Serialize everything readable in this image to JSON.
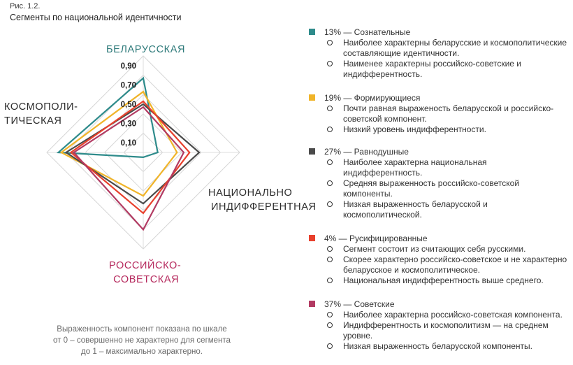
{
  "figure": {
    "label": "Рис. 1.2.",
    "title": "Сегменты по национальной идентичности"
  },
  "axes": {
    "belarusian": "БЕЛАРУССКАЯ",
    "cosmopolitan_line1": "КОСМОПОЛИ-",
    "cosmopolitan_line2": "ТИЧЕСКАЯ",
    "national_indiff_line1": "НАЦИОНАЛЬНО",
    "national_indiff_line2": "ИНДИФФЕРЕНТНАЯ",
    "russian_soviet_line1": "РОССИЙСКО-",
    "russian_soviet_line2": "СОВЕТСКАЯ"
  },
  "note": {
    "line1": "Выраженность компонент показана по шкале",
    "line2": "от 0 – совершенно не характерно для сегмента",
    "line3": "до 1 – максимально характерно."
  },
  "chart_data": {
    "type": "radar",
    "axes": [
      "БЕЛАРУССКАЯ",
      "НАЦИОНАЛЬНО ИНДИФФЕРЕНТНАЯ",
      "РОССИЙСКО-СОВЕТСКАЯ",
      "КОСМОПОЛИТИЧЕСКАЯ"
    ],
    "ticks": [
      "0,90",
      "0,70",
      "0,50",
      "0,30",
      "0,10"
    ],
    "tick_values": [
      0.9,
      0.7,
      0.5,
      0.3,
      0.1
    ],
    "range": [
      0,
      1
    ],
    "grid": true,
    "series": [
      {
        "name": "13% — Сознательные",
        "color": "#2e8b8b",
        "values": [
          0.77,
          0.15,
          0.05,
          0.88
        ]
      },
      {
        "name": "19% — Формирующиеся",
        "color": "#f0b429",
        "values": [
          0.63,
          0.35,
          0.45,
          0.85
        ]
      },
      {
        "name": "27% — Равнодушные",
        "color": "#4a4a4a",
        "values": [
          0.5,
          0.58,
          0.53,
          0.8
        ]
      },
      {
        "name": "4% — Русифицированные",
        "color": "#e8402c",
        "values": [
          0.53,
          0.48,
          0.63,
          0.75
        ]
      },
      {
        "name": "37% — Советские",
        "color": "#b23a62",
        "values": [
          0.47,
          0.42,
          0.8,
          0.72
        ]
      }
    ]
  },
  "legend": [
    {
      "color": "#2e8b8b",
      "header": "13% — Сознательные",
      "items": [
        "Наиболее характерны беларусские и космополитические составляющие идентичности.",
        "Наименее характерны российско-советские и индифферентность."
      ]
    },
    {
      "color": "#f0b429",
      "header": "19% — Формирующиеся",
      "items": [
        "Почти равная выраженость беларусской и российско-советской компонент.",
        "Низкий уровень индифферентности."
      ]
    },
    {
      "color": "#4a4a4a",
      "header": "27% — Равнодушные",
      "items": [
        "Наиболее характерна национальная индифферентность.",
        "Средняя выраженность российско-советской компоненты.",
        "Низкая выраженность беларусской и космополитической."
      ]
    },
    {
      "color": "#e8402c",
      "header": "4% — Русифицированные",
      "items": [
        "Сегмент состоит из считающих себя русскими.",
        "Скорее характерно российско-советское и не характерно беларусское и космополитическое.",
        "Национальная индифферентность выше среднего."
      ]
    },
    {
      "color": "#b23a62",
      "header": "37% — Советские",
      "items": [
        "Наиболее характерна российско-советская компонента.",
        "Индифферентность и космополитизм — на среднем уровне.",
        "Низкая выраженность беларусской компоненты."
      ]
    }
  ]
}
